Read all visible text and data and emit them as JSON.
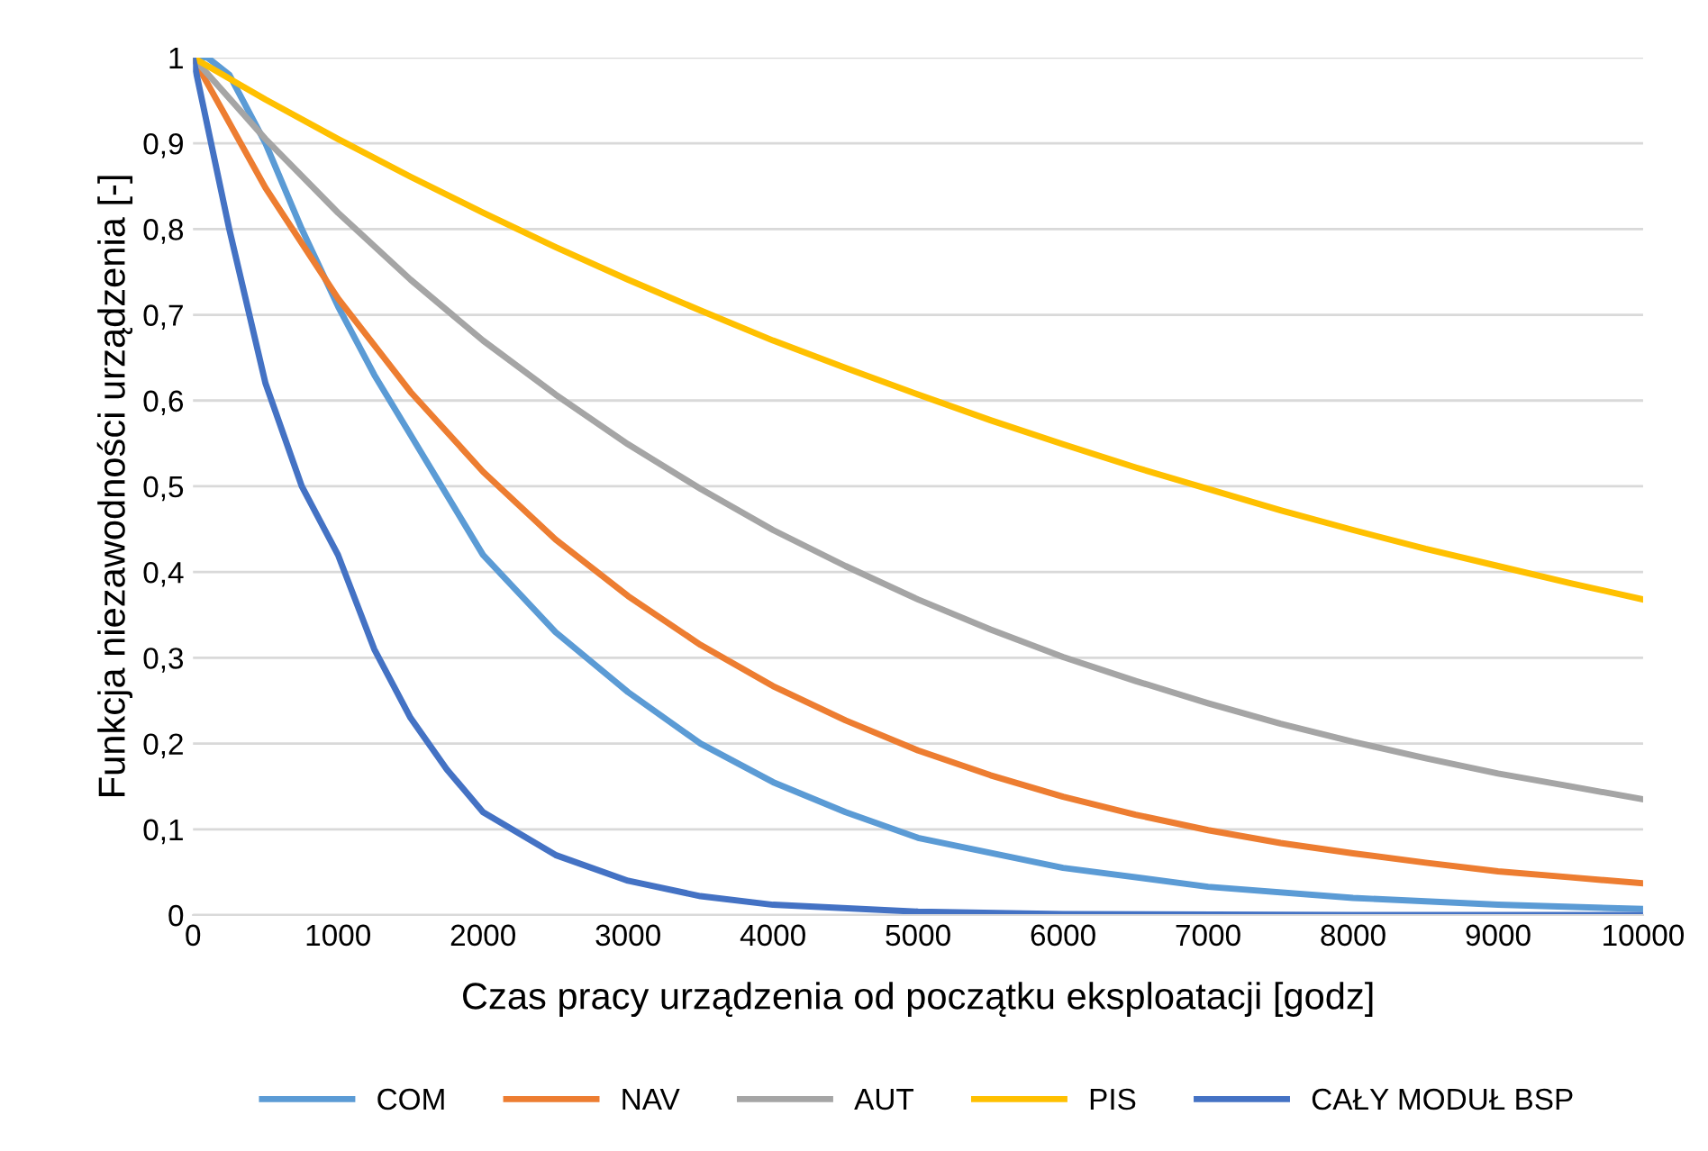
{
  "chart_data": {
    "type": "line",
    "xlabel": "Czas pracy urządzenia od początku eksploatacji [godz]",
    "ylabel": "Funkcja niezawodności urządzenia [-]",
    "series": [
      {
        "name": "COM",
        "color": "#5b9bd5",
        "x": [
          0,
          100,
          250,
          500,
          750,
          1000,
          1250,
          1500,
          2000,
          2500,
          3000,
          3500,
          4000,
          4500,
          5000,
          6000,
          7000,
          8000,
          9000,
          10000
        ],
        "values": [
          1,
          1.0,
          0.98,
          0.9,
          0.8,
          0.71,
          0.63,
          0.56,
          0.42,
          0.33,
          0.26,
          0.2,
          0.155,
          0.12,
          0.09,
          0.055,
          0.033,
          0.02,
          0.012,
          0.007
        ]
      },
      {
        "name": "NAV",
        "color": "#ed7d31",
        "x": [
          0,
          500,
          1000,
          1500,
          2000,
          2500,
          3000,
          3500,
          4000,
          4500,
          5000,
          5500,
          6000,
          6500,
          7000,
          7500,
          8000,
          8500,
          9000,
          9500,
          10000
        ],
        "values": [
          1,
          0.848,
          0.719,
          0.61,
          0.517,
          0.438,
          0.372,
          0.315,
          0.267,
          0.227,
          0.192,
          0.163,
          0.138,
          0.117,
          0.099,
          0.084,
          0.072,
          0.061,
          0.051,
          0.044,
          0.037
        ]
      },
      {
        "name": "AUT",
        "color": "#a5a5a5",
        "x": [
          0,
          500,
          1000,
          1500,
          2000,
          2500,
          3000,
          3500,
          4000,
          4500,
          5000,
          5500,
          6000,
          6500,
          7000,
          7500,
          8000,
          8500,
          9000,
          9500,
          10000
        ],
        "values": [
          1,
          0.905,
          0.819,
          0.741,
          0.67,
          0.607,
          0.549,
          0.497,
          0.449,
          0.407,
          0.368,
          0.333,
          0.301,
          0.273,
          0.247,
          0.223,
          0.202,
          0.183,
          0.165,
          0.15,
          0.135
        ]
      },
      {
        "name": "PIS",
        "color": "#ffc000",
        "x": [
          0,
          500,
          1000,
          1500,
          2000,
          2500,
          3000,
          3500,
          4000,
          4500,
          5000,
          5500,
          6000,
          6500,
          7000,
          7500,
          8000,
          8500,
          9000,
          9500,
          10000
        ],
        "values": [
          1,
          0.951,
          0.905,
          0.861,
          0.819,
          0.779,
          0.741,
          0.705,
          0.67,
          0.638,
          0.607,
          0.577,
          0.549,
          0.522,
          0.497,
          0.472,
          0.449,
          0.427,
          0.407,
          0.387,
          0.368
        ]
      },
      {
        "name": "CAŁY MODUŁ BSP",
        "color": "#4472c4",
        "x": [
          0,
          250,
          500,
          750,
          1000,
          1250,
          1500,
          1750,
          2000,
          2500,
          3000,
          3500,
          4000,
          5000,
          6000,
          8000,
          10000
        ],
        "values": [
          1,
          0.8,
          0.62,
          0.5,
          0.42,
          0.31,
          0.23,
          0.17,
          0.12,
          0.07,
          0.04,
          0.022,
          0.012,
          0.004,
          0.001,
          0,
          0
        ]
      }
    ],
    "xlim": [
      0,
      10000
    ],
    "xticks": [
      0,
      1000,
      2000,
      3000,
      4000,
      5000,
      6000,
      7000,
      8000,
      9000,
      10000
    ],
    "ylim": [
      0,
      1
    ],
    "yticks": [
      0,
      {
        "value": 0.1,
        "label": "0,1"
      },
      {
        "value": 0.2,
        "label": "0,2"
      },
      {
        "value": 0.3,
        "label": "0,3"
      },
      {
        "value": 0.4,
        "label": "0,4"
      },
      {
        "value": 0.5,
        "label": "0,5"
      },
      {
        "value": 0.6,
        "label": "0,6"
      },
      {
        "value": 0.7,
        "label": "0,7"
      },
      {
        "value": 0.8,
        "label": "0,8"
      },
      {
        "value": 0.9,
        "label": "0,9"
      },
      1
    ],
    "grid": "y",
    "legend": "bottom",
    "marker": "none",
    "line_style": "solid"
  }
}
